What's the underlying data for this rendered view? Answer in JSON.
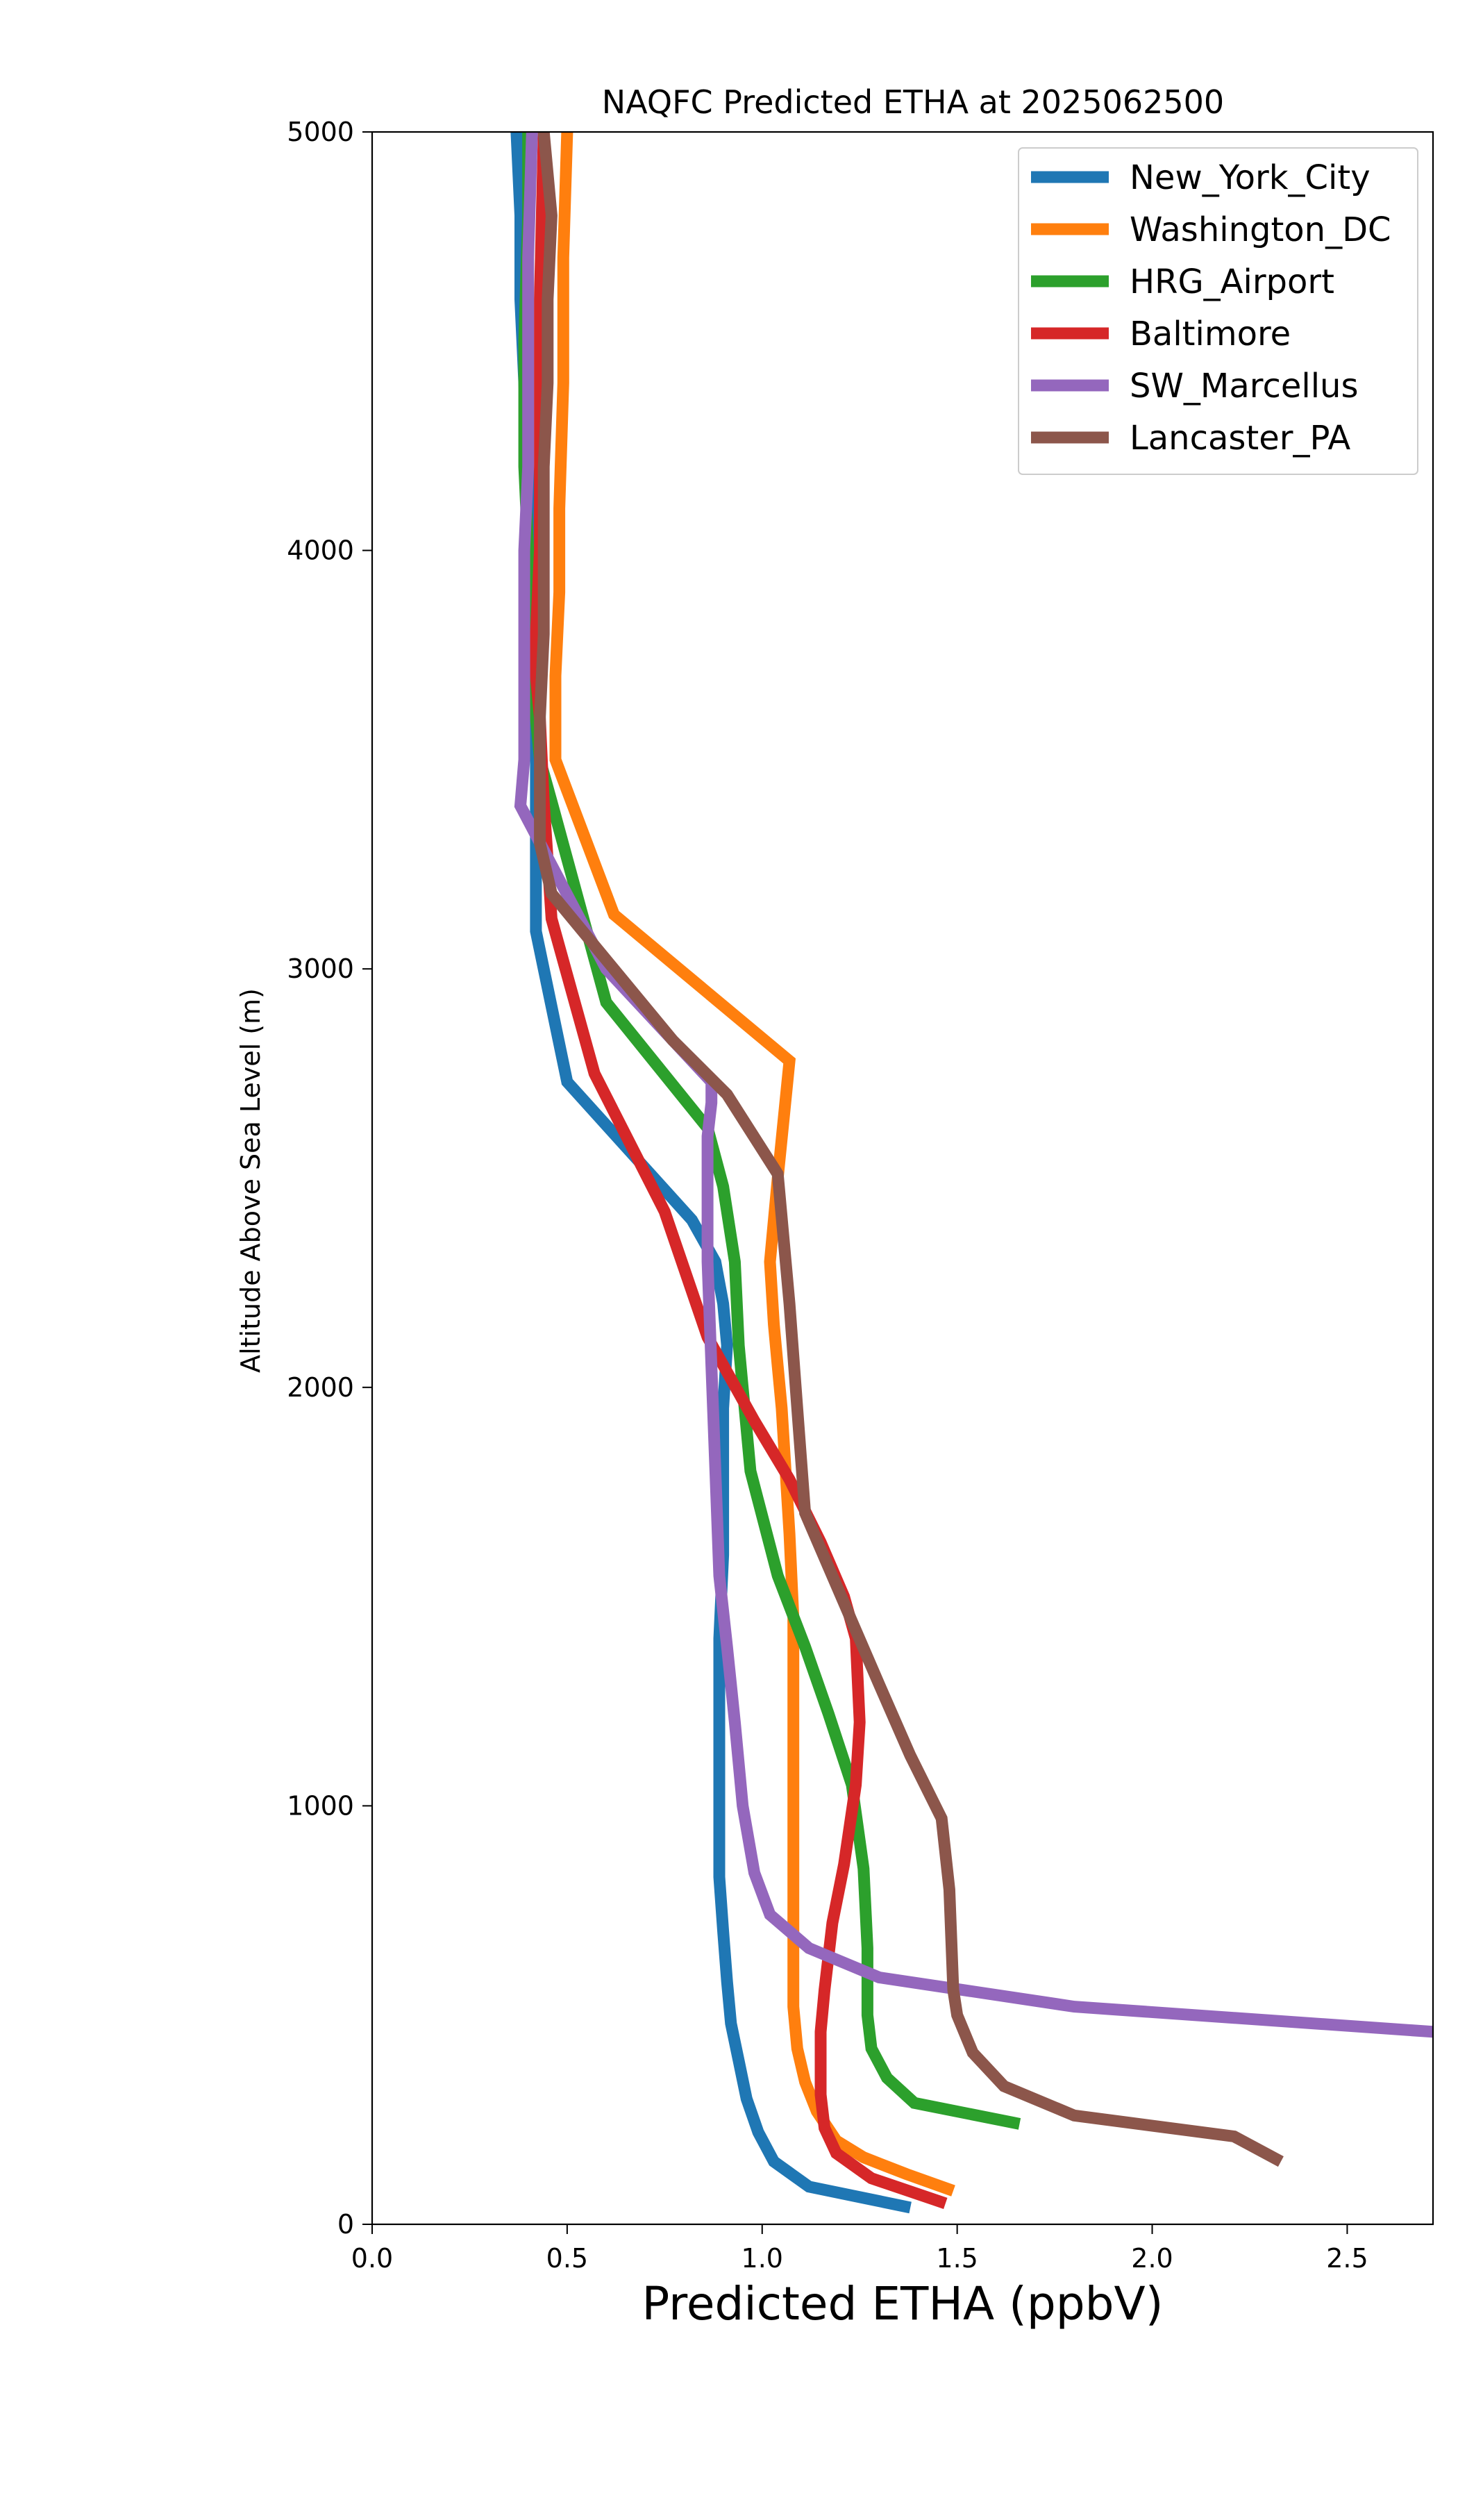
{
  "chart_data": {
    "type": "line",
    "title": "NAQFC Predicted ETHA at 2025062500",
    "xlabel": "Predicted ETHA (ppbV)",
    "ylabel": "Altitude Above Sea Level (m)",
    "xlim": [
      0.0,
      2.72
    ],
    "ylim": [
      0,
      5000
    ],
    "xticks": [
      "0.0",
      "0.5",
      "1.0",
      "1.5",
      "2.0",
      "2.5"
    ],
    "yticks": [
      "0",
      "1000",
      "2000",
      "3000",
      "4000",
      "5000"
    ],
    "grid": false,
    "legend_position": "top-right",
    "series": [
      {
        "name": "New_York_City",
        "color": "#1f77b4",
        "x": [
          1.38,
          1.12,
          1.03,
          0.99,
          0.96,
          0.94,
          0.92,
          0.91,
          0.9,
          0.89,
          0.89,
          0.89,
          0.89,
          0.9,
          0.9,
          0.9,
          0.91,
          0.9,
          0.88,
          0.82,
          0.5,
          0.42,
          0.42,
          0.42,
          0.41,
          0.4,
          0.39,
          0.38,
          0.38,
          0.37
        ],
        "y": [
          40,
          90,
          150,
          220,
          300,
          390,
          480,
          580,
          700,
          830,
          1000,
          1200,
          1400,
          1600,
          1800,
          1950,
          2100,
          2200,
          2300,
          2400,
          2730,
          3090,
          3400,
          3700,
          4000,
          4200,
          4400,
          4600,
          4800,
          5000
        ]
      },
      {
        "name": "Washington_DC",
        "color": "#ff7f0e",
        "x": [
          1.49,
          1.37,
          1.26,
          1.19,
          1.14,
          1.11,
          1.09,
          1.08,
          1.08,
          1.08,
          1.08,
          1.08,
          1.08,
          1.07,
          1.06,
          1.05,
          1.04,
          1.03,
          1.02,
          1.04,
          1.07,
          0.62,
          0.47,
          0.47,
          0.47,
          0.48,
          0.48,
          0.49,
          0.49,
          0.5
        ],
        "y": [
          80,
          120,
          160,
          200,
          270,
          340,
          420,
          520,
          650,
          800,
          1050,
          1250,
          1450,
          1650,
          1800,
          1950,
          2050,
          2150,
          2300,
          2500,
          2780,
          3130,
          3500,
          3600,
          3700,
          3900,
          4100,
          4400,
          4700,
          5000
        ]
      },
      {
        "name": "HRG_Airport",
        "color": "#2ca02c",
        "x": [
          1.66,
          1.39,
          1.32,
          1.28,
          1.27,
          1.27,
          1.26,
          1.23,
          1.17,
          1.11,
          1.04,
          0.97,
          0.95,
          0.94,
          0.93,
          0.9,
          0.86,
          0.6,
          0.46,
          0.43,
          0.42,
          0.41,
          0.4,
          0.39,
          0.39,
          0.4,
          0.4
        ],
        "y": [
          240,
          290,
          350,
          420,
          500,
          660,
          850,
          1050,
          1220,
          1380,
          1550,
          1800,
          2000,
          2100,
          2300,
          2480,
          2620,
          2920,
          3400,
          3500,
          3600,
          3800,
          4000,
          4200,
          4500,
          4800,
          5000
        ]
      },
      {
        "name": "Baltimore",
        "color": "#d62728",
        "x": [
          1.47,
          1.28,
          1.19,
          1.16,
          1.15,
          1.15,
          1.15,
          1.16,
          1.18,
          1.21,
          1.24,
          1.25,
          1.24,
          1.21,
          1.15,
          1.07,
          0.98,
          0.86,
          0.75,
          0.57,
          0.46,
          0.44,
          0.43,
          0.42,
          0.42,
          0.43,
          0.43,
          0.43,
          0.44
        ],
        "y": [
          50,
          110,
          170,
          230,
          310,
          380,
          460,
          560,
          720,
          860,
          1050,
          1200,
          1400,
          1500,
          1630,
          1780,
          1920,
          2120,
          2420,
          2750,
          3120,
          3400,
          3600,
          3700,
          3800,
          4000,
          4300,
          4600,
          5000
        ]
      },
      {
        "name": "SW_Marcellus",
        "color": "#9467bd",
        "x": [
          2.72,
          1.8,
          1.3,
          1.12,
          1.02,
          0.98,
          0.95,
          0.93,
          0.91,
          0.89,
          0.88,
          0.87,
          0.86,
          0.86,
          0.86,
          0.87,
          0.87,
          0.6,
          0.38,
          0.39,
          0.39,
          0.39,
          0.39,
          0.4,
          0.4,
          0.4,
          0.41
        ],
        "y": [
          460,
          520,
          590,
          660,
          740,
          840,
          1000,
          1200,
          1380,
          1550,
          1800,
          2050,
          2300,
          2500,
          2600,
          2680,
          2730,
          3000,
          3390,
          3500,
          3600,
          3800,
          4000,
          4200,
          4400,
          4700,
          5000
        ]
      },
      {
        "name": "Lancaster_PA",
        "color": "#8c564b",
        "x": [
          2.33,
          2.21,
          1.8,
          1.62,
          1.54,
          1.5,
          1.49,
          1.48,
          1.46,
          1.38,
          1.3,
          1.11,
          1.09,
          1.07,
          1.04,
          0.91,
          0.77,
          0.46,
          0.43,
          0.43,
          0.43,
          0.44,
          0.44,
          0.44,
          0.45,
          0.45,
          0.46,
          0.45,
          0.44
        ],
        "y": [
          150,
          210,
          260,
          330,
          410,
          500,
          560,
          800,
          970,
          1120,
          1290,
          1700,
          1950,
          2200,
          2510,
          2700,
          2830,
          3180,
          3300,
          3400,
          3600,
          3800,
          4000,
          4200,
          4400,
          4600,
          4800,
          4900,
          5000
        ]
      }
    ]
  }
}
